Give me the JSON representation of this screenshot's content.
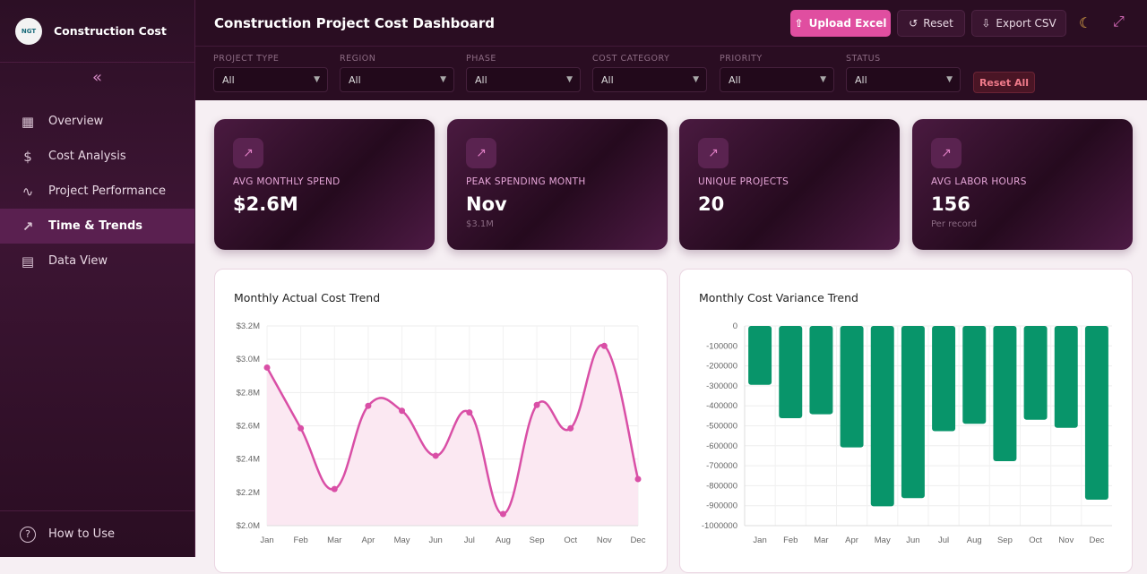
{
  "sidebar": {
    "logo_text": "NGT",
    "brand": "Construction Cost",
    "collapse_icon": "chevrons-left-icon",
    "items": [
      {
        "label": "Overview",
        "icon": "grid-icon"
      },
      {
        "label": "Cost Analysis",
        "icon": "dollar-icon"
      },
      {
        "label": "Project Performance",
        "icon": "activity-icon"
      },
      {
        "label": "Time & Trends",
        "icon": "trending-up-icon",
        "active": true
      },
      {
        "label": "Data View",
        "icon": "table-icon"
      }
    ],
    "help": "How to Use"
  },
  "header": {
    "title": "Construction Project Cost Dashboard",
    "upload": "Upload Excel",
    "reset": "Reset",
    "export": "Export CSV",
    "theme_icon": "moon-icon",
    "fullscreen_icon": "expand-icon"
  },
  "filters": [
    {
      "label": "PROJECT TYPE",
      "value": "All"
    },
    {
      "label": "REGION",
      "value": "All"
    },
    {
      "label": "PHASE",
      "value": "All"
    },
    {
      "label": "COST CATEGORY",
      "value": "All"
    },
    {
      "label": "PRIORITY",
      "value": "All"
    },
    {
      "label": "STATUS",
      "value": "All"
    }
  ],
  "reset_all": "Reset All",
  "kpis": [
    {
      "label": "AVG MONTHLY SPEND",
      "value": "$2.6M",
      "sub": ""
    },
    {
      "label": "PEAK SPENDING MONTH",
      "value": "Nov",
      "sub": "$3.1M"
    },
    {
      "label": "UNIQUE PROJECTS",
      "value": "20",
      "sub": ""
    },
    {
      "label": "AVG LABOR HOURS",
      "value": "156",
      "sub": "Per record"
    }
  ],
  "accent": "#e04ea0",
  "chart_data": [
    {
      "type": "line",
      "title": "Monthly Actual Cost Trend",
      "color": "#d94fa6",
      "fill": true,
      "categories": [
        "Jan",
        "Feb",
        "Mar",
        "Apr",
        "May",
        "Jun",
        "Jul",
        "Aug",
        "Sep",
        "Oct",
        "Nov",
        "Dec"
      ],
      "values": [
        2950000,
        2585000,
        2220000,
        2720000,
        2690000,
        2420000,
        2680000,
        2070000,
        2725000,
        2585000,
        3080000,
        2280000
      ],
      "ylim": [
        2000000,
        3200000
      ],
      "yticks": [
        "$2.0M",
        "$2.2M",
        "$2.4M",
        "$2.6M",
        "$2.8M",
        "$3.0M",
        "$3.2M"
      ],
      "grid": true
    },
    {
      "type": "bar",
      "title": "Monthly Cost Variance Trend",
      "color": "#08956a",
      "categories": [
        "Jan",
        "Feb",
        "Mar",
        "Apr",
        "May",
        "Jun",
        "Jul",
        "Aug",
        "Sep",
        "Oct",
        "Nov",
        "Dec"
      ],
      "values": [
        -295000,
        -462000,
        -442000,
        -608000,
        -903000,
        -862000,
        -527000,
        -490000,
        -677000,
        -470000,
        -510000,
        -870000
      ],
      "ylim": [
        -1000000,
        0
      ],
      "yticks": [
        "0",
        "-100000",
        "-200000",
        "-300000",
        "-400000",
        "-500000",
        "-600000",
        "-700000",
        "-800000",
        "-900000",
        "-1000000"
      ],
      "grid": true
    }
  ]
}
